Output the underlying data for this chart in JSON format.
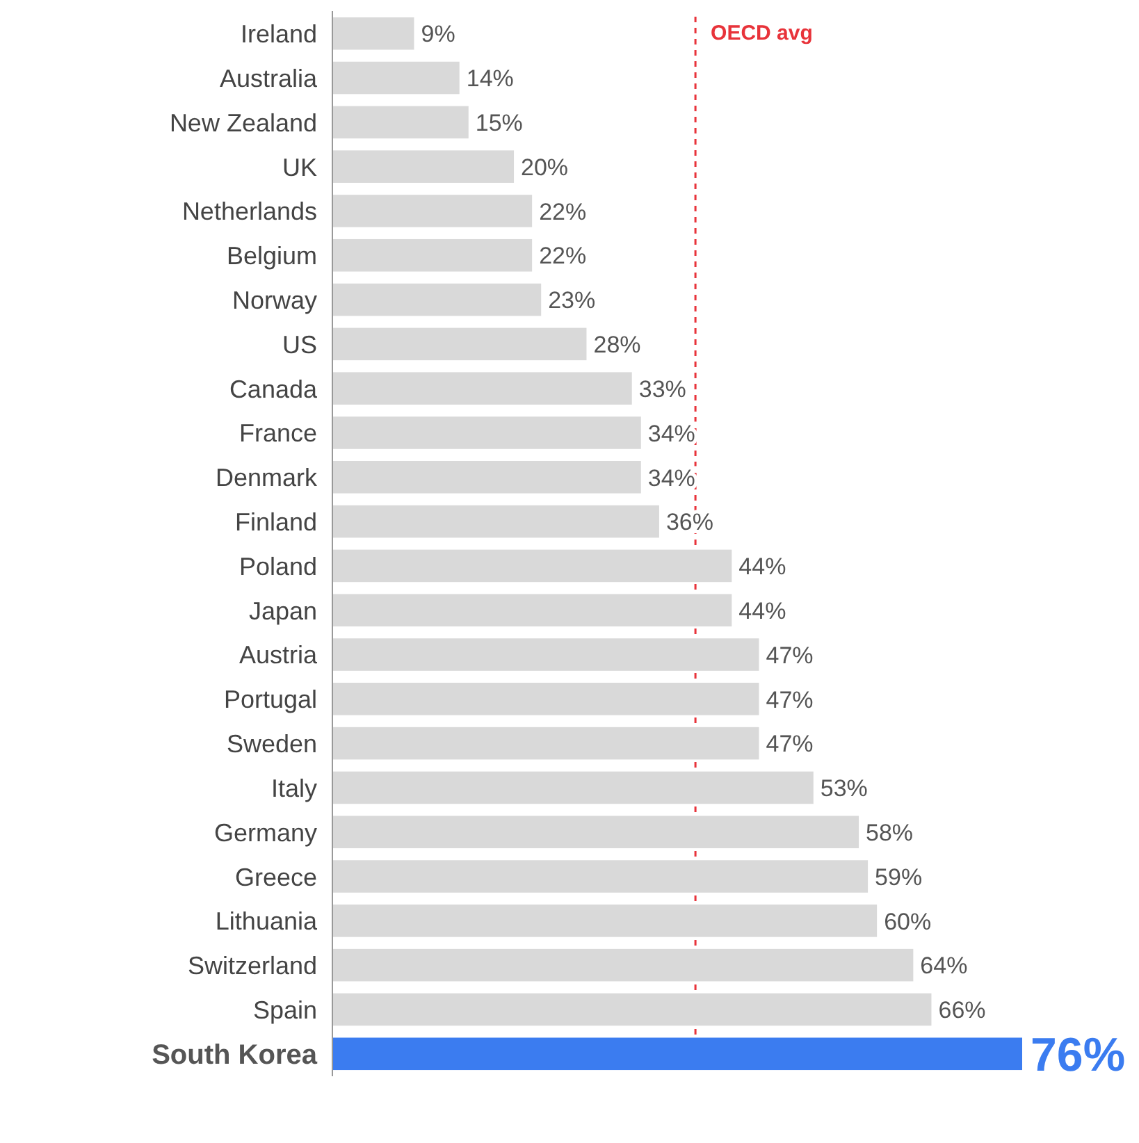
{
  "chart_data": {
    "type": "bar",
    "orientation": "horizontal",
    "value_labels": [
      "9%",
      "14%",
      "15%",
      "20%",
      "22%",
      "22%",
      "23%",
      "28%",
      "33%",
      "34%",
      "34%",
      "36%",
      "44%",
      "44%",
      "47%",
      "47%",
      "47%",
      "53%",
      "58%",
      "59%",
      "60%",
      "64%",
      "66%",
      "76%"
    ],
    "categories": [
      "Ireland",
      "Australia",
      "New Zealand",
      "UK",
      "Netherlands",
      "Belgium",
      "Norway",
      "US",
      "Canada",
      "France",
      "Denmark",
      "Finland",
      "Poland",
      "Japan",
      "Austria",
      "Portugal",
      "Sweden",
      "Italy",
      "Germany",
      "Greece",
      "Lithuania",
      "Switzerland",
      "Spain",
      "South Korea"
    ],
    "values": [
      9,
      14,
      15,
      20,
      22,
      22,
      23,
      28,
      33,
      34,
      34,
      36,
      44,
      44,
      47,
      47,
      47,
      53,
      58,
      59,
      60,
      64,
      66,
      76
    ],
    "colors": [
      "#d9d9d9",
      "#d9d9d9",
      "#d9d9d9",
      "#d9d9d9",
      "#d9d9d9",
      "#d9d9d9",
      "#d9d9d9",
      "#d9d9d9",
      "#d9d9d9",
      "#d9d9d9",
      "#d9d9d9",
      "#d9d9d9",
      "#d9d9d9",
      "#d9d9d9",
      "#d9d9d9",
      "#d9d9d9",
      "#d9d9d9",
      "#d9d9d9",
      "#d9d9d9",
      "#d9d9d9",
      "#d9d9d9",
      "#d9d9d9",
      "#d9d9d9",
      "#3b7cf0"
    ],
    "ref_lines": [
      {
        "axis": "x",
        "value": 40,
        "label": "OECD avg",
        "color": "#e8333a",
        "line_style": "dashed"
      }
    ]
  }
}
